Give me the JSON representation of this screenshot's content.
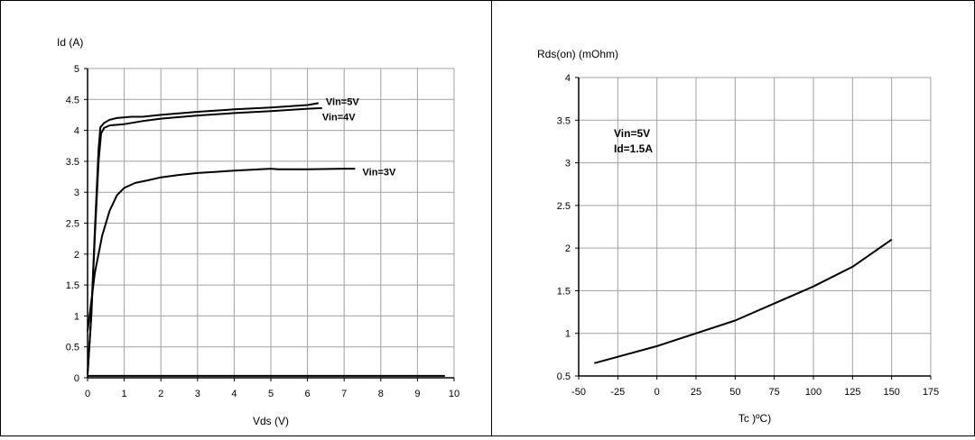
{
  "chart_data": [
    {
      "type": "line",
      "title": "",
      "ylabel": "Id (A)",
      "xlabel": "Vds (V)",
      "xlim": [
        0,
        10
      ],
      "ylim": [
        0,
        5
      ],
      "xticks": [
        "0",
        "1",
        "2",
        "3",
        "4",
        "5",
        "6",
        "7",
        "8",
        "9",
        "10"
      ],
      "yticks": [
        "0",
        "0.5",
        "1",
        "1.5",
        "2",
        "2.5",
        "3",
        "3.5",
        "4",
        "4.5",
        "5"
      ],
      "grid": true,
      "series": [
        {
          "name": "Vin=5V",
          "points": [
            [
              0,
              0.05
            ],
            [
              0.1,
              1.0
            ],
            [
              0.2,
              2.4
            ],
            [
              0.3,
              3.7
            ],
            [
              0.35,
              4.05
            ],
            [
              0.45,
              4.12
            ],
            [
              0.6,
              4.17
            ],
            [
              0.8,
              4.2
            ],
            [
              1.2,
              4.22
            ],
            [
              1.5,
              4.22
            ],
            [
              2,
              4.25
            ],
            [
              3,
              4.3
            ],
            [
              4,
              4.34
            ],
            [
              5,
              4.37
            ],
            [
              6,
              4.41
            ],
            [
              6.3,
              4.44
            ]
          ]
        },
        {
          "name": "Vin=4V",
          "points": [
            [
              0,
              0.05
            ],
            [
              0.1,
              1.0
            ],
            [
              0.2,
              2.3
            ],
            [
              0.3,
              3.5
            ],
            [
              0.37,
              3.95
            ],
            [
              0.45,
              4.04
            ],
            [
              0.6,
              4.08
            ],
            [
              1,
              4.1
            ],
            [
              1.5,
              4.15
            ],
            [
              2,
              4.19
            ],
            [
              3,
              4.24
            ],
            [
              4,
              4.28
            ],
            [
              5,
              4.31
            ],
            [
              6,
              4.35
            ],
            [
              6.4,
              4.36
            ]
          ]
        },
        {
          "name": "Vin=3V",
          "points": [
            [
              0,
              0.75
            ],
            [
              0.2,
              1.7
            ],
            [
              0.4,
              2.3
            ],
            [
              0.6,
              2.7
            ],
            [
              0.8,
              2.95
            ],
            [
              1,
              3.07
            ],
            [
              1.3,
              3.15
            ],
            [
              1.7,
              3.2
            ],
            [
              2,
              3.24
            ],
            [
              2.5,
              3.28
            ],
            [
              3,
              3.31
            ],
            [
              3.5,
              3.33
            ],
            [
              4,
              3.35
            ],
            [
              5,
              3.38
            ],
            [
              5.2,
              3.37
            ],
            [
              6,
              3.37
            ],
            [
              7,
              3.38
            ],
            [
              7.3,
              3.38
            ]
          ]
        },
        {
          "name": "",
          "points": [
            [
              0,
              0.03
            ],
            [
              9.75,
              0.03
            ]
          ]
        }
      ],
      "labels": [
        {
          "text": "Vin=5V",
          "x": 6.5,
          "y": 4.47
        },
        {
          "text": "Vin=4V",
          "x": 6.4,
          "y": 4.22
        },
        {
          "text": "Vin=3V",
          "x": 7.5,
          "y": 3.33
        }
      ]
    },
    {
      "type": "line",
      "title": "",
      "ylabel": "Rds(on) (mOhm)",
      "xlabel": "Tc )ºC)",
      "xlim": [
        -50,
        175
      ],
      "ylim": [
        0.5,
        4
      ],
      "xticks": [
        "-50",
        "-25",
        "0",
        "25",
        "50",
        "75",
        "100",
        "125",
        "150",
        "175"
      ],
      "yticks": [
        "0.5",
        "1",
        "1.5",
        "2",
        "2.5",
        "3",
        "3.5",
        "4"
      ],
      "grid": true,
      "series": [
        {
          "name": "",
          "points": [
            [
              -40,
              0.65
            ],
            [
              0,
              0.85
            ],
            [
              25,
              1.0
            ],
            [
              50,
              1.15
            ],
            [
              75,
              1.35
            ],
            [
              100,
              1.55
            ],
            [
              125,
              1.78
            ],
            [
              150,
              2.1
            ]
          ]
        }
      ],
      "annotation": [
        "Vin=5V",
        "Id=1.5A"
      ]
    }
  ]
}
